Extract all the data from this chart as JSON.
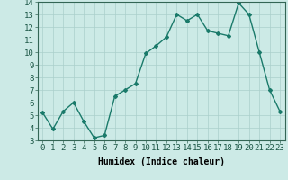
{
  "x": [
    0,
    1,
    2,
    3,
    4,
    5,
    6,
    7,
    8,
    9,
    10,
    11,
    12,
    13,
    14,
    15,
    16,
    17,
    18,
    19,
    20,
    21,
    22,
    23
  ],
  "y": [
    5.2,
    3.9,
    5.3,
    6.0,
    4.5,
    3.2,
    3.4,
    6.5,
    7.0,
    7.5,
    9.9,
    10.5,
    11.2,
    13.0,
    12.5,
    13.0,
    11.7,
    11.5,
    11.3,
    13.9,
    13.0,
    10.0,
    7.0,
    5.3
  ],
  "line_color": "#1a7a6a",
  "marker": "D",
  "marker_size": 2,
  "bg_color": "#cceae6",
  "grid_color": "#aacfcb",
  "xlabel": "Humidex (Indice chaleur)",
  "xlim": [
    -0.5,
    23.5
  ],
  "ylim": [
    3,
    14
  ],
  "yticks": [
    3,
    4,
    5,
    6,
    7,
    8,
    9,
    10,
    11,
    12,
    13,
    14
  ],
  "xticks": [
    0,
    1,
    2,
    3,
    4,
    5,
    6,
    7,
    8,
    9,
    10,
    11,
    12,
    13,
    14,
    15,
    16,
    17,
    18,
    19,
    20,
    21,
    22,
    23
  ],
  "xlabel_fontsize": 7,
  "tick_fontsize": 6.5,
  "line_width": 1.0
}
